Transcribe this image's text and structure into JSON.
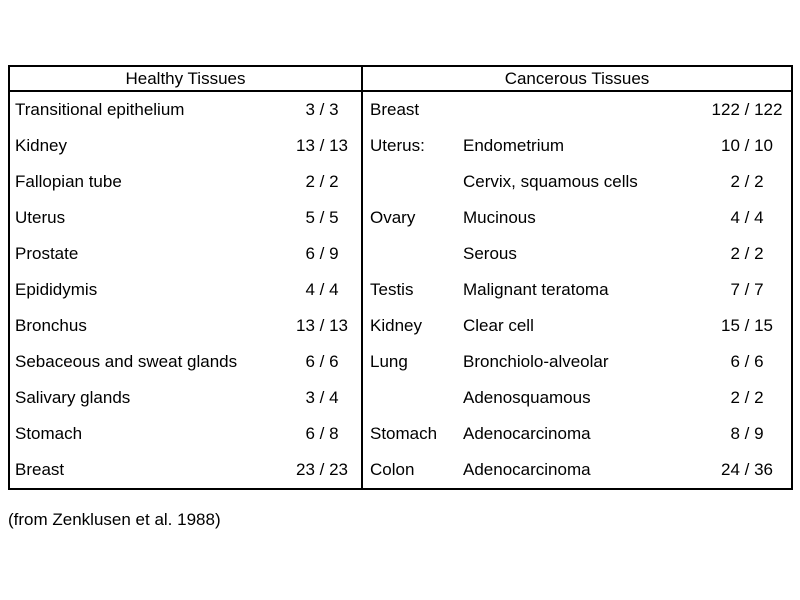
{
  "table": {
    "left": {
      "header": "Healthy Tissues",
      "rows": [
        {
          "name": "Transitional epithelium",
          "value": "3 / 3"
        },
        {
          "name": "Kidney",
          "value": "13 / 13"
        },
        {
          "name": "Fallopian tube",
          "value": "2 / 2"
        },
        {
          "name": "Uterus",
          "value": "5 / 5"
        },
        {
          "name": "Prostate",
          "value": "6 / 9"
        },
        {
          "name": "Epididymis",
          "value": "4 / 4"
        },
        {
          "name": "Bronchus",
          "value": "13 / 13"
        },
        {
          "name": "Sebaceous and sweat glands",
          "value": "6 / 6"
        },
        {
          "name": "Salivary glands",
          "value": "3 / 4"
        },
        {
          "name": "Stomach",
          "value": "6 / 8"
        },
        {
          "name": "Breast",
          "value": "23 / 23"
        }
      ]
    },
    "right": {
      "header": "Cancerous Tissues",
      "rows": [
        {
          "organ": "Breast",
          "subtype": "",
          "value": "122 / 122"
        },
        {
          "organ": "Uterus:",
          "subtype": "Endometrium",
          "value": "10 / 10"
        },
        {
          "organ": "",
          "subtype": "Cervix, squamous cells",
          "value": "2 / 2"
        },
        {
          "organ": "Ovary",
          "subtype": "Mucinous",
          "value": "4 / 4"
        },
        {
          "organ": "",
          "subtype": "Serous",
          "value": "2 / 2"
        },
        {
          "organ": "Testis",
          "subtype": "Malignant teratoma",
          "value": "7 / 7"
        },
        {
          "organ": "Kidney",
          "subtype": "Clear cell",
          "value": "15 / 15"
        },
        {
          "organ": "Lung",
          "subtype": "Bronchiolo-alveolar",
          "value": "6 / 6"
        },
        {
          "organ": "",
          "subtype": "Adenosquamous",
          "value": "2 / 2"
        },
        {
          "organ": "Stomach",
          "subtype": "Adenocarcinoma",
          "value": "8 / 9"
        },
        {
          "organ": "Colon",
          "subtype": "Adenocarcinoma",
          "value": "24 / 36"
        }
      ]
    }
  },
  "caption": "(from Zenklusen et al. 1988)",
  "colors": {
    "border": "#000000",
    "text": "#000000",
    "background": "#ffffff"
  }
}
